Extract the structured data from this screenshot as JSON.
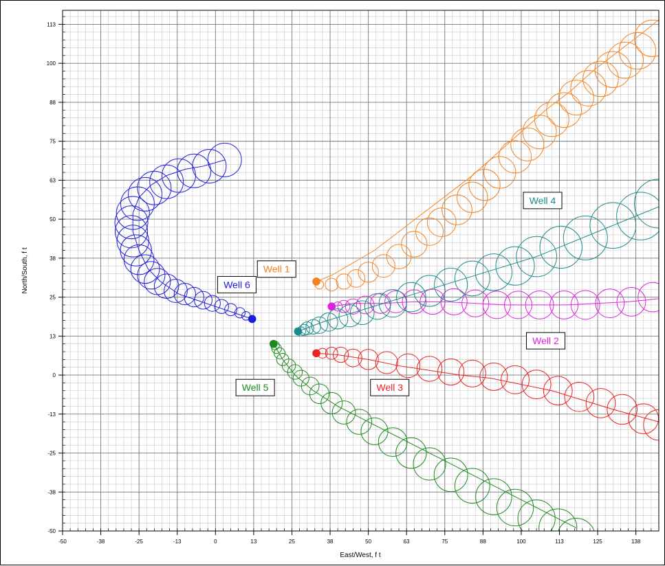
{
  "chart_data": {
    "type": "scatter",
    "title": "",
    "xlabel": "East/West, f t",
    "ylabel": "North/South, f t",
    "xlim": [
      -50,
      145
    ],
    "ylim": [
      -50,
      117
    ],
    "grid": true,
    "x_ticks": [
      "-50",
      "-38",
      "-25",
      "-13",
      "0",
      "13",
      "25",
      "38",
      "50",
      "63",
      "75",
      "88",
      "100",
      "113",
      "125",
      "138"
    ],
    "y_ticks": [
      "113",
      "100",
      "88",
      "75",
      "63",
      "50",
      "38",
      "25",
      "13",
      "0",
      "-13",
      "-25",
      "-38",
      "-50"
    ],
    "series": [
      {
        "name": "Well 1",
        "color": "#f58220",
        "label_pos": [
          20,
          34
        ],
        "start": [
          33,
          30
        ],
        "x": [
          33,
          38,
          45,
          52,
          60,
          68,
          76,
          84,
          92,
          100,
          108,
          116,
          124,
          132,
          140,
          145
        ],
        "y": [
          30,
          32,
          36,
          40,
          46,
          52,
          58,
          64,
          71,
          78,
          85,
          91,
          98,
          104,
          110,
          114
        ],
        "circle_x": [
          33,
          34,
          38,
          42,
          46,
          50,
          55,
          60,
          65,
          70,
          74,
          79,
          84,
          88,
          93,
          98,
          102,
          106,
          110,
          114,
          118,
          122,
          126,
          130,
          134,
          138,
          143
        ],
        "circle_y": [
          30,
          29,
          29,
          30,
          31,
          33,
          35,
          38,
          42,
          46,
          49,
          53,
          57,
          61,
          65,
          70,
          74,
          78,
          82,
          85,
          89,
          92,
          95,
          98,
          101,
          104,
          108
        ],
        "circle_r": [
          1.2,
          1.4,
          2.1,
          2.5,
          2.9,
          3.3,
          3.7,
          4.0,
          4.2,
          4.5,
          4.7,
          4.9,
          5.0,
          5.1,
          5.2,
          5.3,
          5.4,
          5.5,
          5.6,
          5.7,
          5.7,
          5.8,
          5.8,
          5.9,
          5.9,
          6.0,
          6.0
        ]
      },
      {
        "name": "Well 2",
        "color": "#e020e0",
        "label_pos": [
          108,
          11
        ],
        "start": [
          38,
          22
        ],
        "x": [
          38,
          45,
          55,
          65,
          75,
          85,
          95,
          105,
          115,
          125,
          135,
          145
        ],
        "y": [
          22,
          23,
          23,
          23.5,
          23.5,
          23,
          22.5,
          22.5,
          22.5,
          23,
          23.5,
          24.5
        ],
        "circle_x": [
          38,
          40,
          42,
          45,
          49,
          54,
          59,
          65,
          71,
          78,
          85,
          92,
          99,
          106,
          114,
          121,
          129,
          136,
          143
        ],
        "circle_y": [
          22,
          22,
          22,
          22,
          22.5,
          23,
          23.5,
          23.5,
          23.5,
          23.5,
          23,
          22.5,
          22.5,
          22.5,
          22.5,
          22.5,
          23,
          23.5,
          25
        ],
        "circle_r": [
          1.2,
          1.5,
          2.0,
          2.5,
          2.9,
          3.3,
          3.6,
          3.9,
          4.1,
          4.3,
          4.4,
          4.5,
          4.5,
          4.6,
          4.6,
          4.7,
          4.7,
          4.7,
          4.8
        ]
      },
      {
        "name": "Well 3",
        "color": "#ee2020",
        "label_pos": [
          57,
          -4
        ],
        "start": [
          33,
          7
        ],
        "x": [
          33,
          40,
          50,
          60,
          70,
          80,
          90,
          100,
          110,
          120,
          130,
          145
        ],
        "y": [
          7,
          6.5,
          5,
          3,
          1.5,
          0,
          -1,
          -3,
          -5,
          -8,
          -11,
          -15
        ],
        "circle_x": [
          33,
          35,
          38,
          41,
          45,
          50,
          56,
          63,
          70,
          77,
          84,
          91,
          98,
          105,
          112,
          119,
          126,
          133,
          140,
          145
        ],
        "circle_y": [
          7,
          7,
          7,
          6.5,
          5.5,
          5,
          4,
          3,
          2,
          1,
          0.5,
          -0.5,
          -1.5,
          -3,
          -5,
          -7,
          -9,
          -11,
          -14,
          -16
        ],
        "circle_r": [
          1.2,
          1.6,
          2.0,
          2.5,
          2.9,
          3.3,
          3.6,
          3.9,
          4.1,
          4.3,
          4.4,
          4.5,
          4.6,
          4.7,
          4.7,
          4.8,
          4.8,
          4.9,
          4.9,
          5.0
        ]
      },
      {
        "name": "Well 4",
        "color": "#1a8a8a",
        "label_pos": [
          107,
          56
        ],
        "start": [
          27,
          14
        ],
        "x": [
          27,
          35,
          45,
          55,
          65,
          75,
          85,
          95,
          105,
          115,
          125,
          135,
          145
        ],
        "y": [
          14,
          17,
          20,
          23,
          26,
          29,
          32,
          35,
          38,
          42,
          46,
          50,
          54
        ],
        "circle_x": [
          27,
          28,
          29,
          30,
          32,
          34,
          37,
          40,
          44,
          48,
          53,
          58,
          64,
          70,
          77,
          84,
          91,
          98,
          105,
          113,
          121,
          130,
          139,
          145
        ],
        "circle_y": [
          14,
          14,
          14.5,
          15,
          15.5,
          16,
          17,
          18,
          19,
          20,
          22,
          23,
          25,
          27,
          29,
          31,
          33,
          35,
          38,
          41,
          44,
          48,
          51,
          55
        ],
        "circle_r": [
          1.2,
          1.5,
          1.8,
          2.1,
          2.4,
          2.7,
          3.0,
          3.3,
          3.6,
          3.9,
          4.2,
          4.5,
          4.8,
          5.1,
          5.4,
          5.7,
          6.0,
          6.3,
          6.6,
          6.9,
          7.2,
          7.5,
          7.8,
          8.0
        ]
      },
      {
        "name": "Well 5",
        "color": "#1c8a1c",
        "label_pos": [
          13,
          -4
        ],
        "start": [
          19,
          10
        ],
        "x": [
          19,
          22,
          26,
          32,
          40,
          50,
          60,
          70,
          80,
          90,
          100,
          110,
          118
        ],
        "y": [
          10,
          5,
          0,
          -5,
          -10,
          -15,
          -20,
          -25,
          -30,
          -35,
          -40,
          -45,
          -49
        ],
        "circle_x": [
          19,
          19.5,
          20,
          21,
          22,
          24,
          26,
          28,
          31,
          34,
          38,
          42,
          47,
          52,
          58,
          64,
          70,
          77,
          84,
          91,
          98,
          105,
          112,
          118
        ],
        "circle_y": [
          10,
          9.5,
          8.5,
          7,
          5,
          3,
          1,
          -1,
          -3.5,
          -6,
          -9,
          -12,
          -15,
          -18,
          -21.5,
          -25,
          -28.5,
          -32,
          -35.5,
          -39,
          -42.5,
          -46,
          -49,
          -52
        ],
        "circle_r": [
          1.2,
          1.4,
          1.6,
          1.8,
          2.0,
          2.2,
          2.4,
          2.6,
          2.9,
          3.2,
          3.5,
          3.8,
          4.1,
          4.4,
          4.7,
          5.0,
          5.3,
          5.5,
          5.7,
          5.9,
          6.0,
          6.1,
          6.2,
          6.2
        ]
      },
      {
        "name": "Well 6",
        "color": "#1c1cdc",
        "label_pos": [
          7,
          29
        ],
        "start": [
          12,
          18
        ],
        "x": [
          12,
          6,
          0,
          -6,
          -12,
          -18,
          -22,
          -25,
          -27,
          -27,
          -25,
          -21,
          -16,
          -10,
          -4,
          3
        ],
        "y": [
          18,
          20,
          22,
          24,
          26,
          30,
          34,
          40,
          46,
          52,
          57,
          61,
          64,
          66,
          67,
          69
        ],
        "circle_x": [
          12,
          10,
          8,
          5,
          2,
          -1,
          -4,
          -7,
          -10,
          -13,
          -16,
          -19,
          -21,
          -23,
          -25,
          -26,
          -27,
          -27.5,
          -27.5,
          -27,
          -25.5,
          -23,
          -20,
          -16,
          -12,
          -7,
          -2,
          3
        ],
        "circle_y": [
          18,
          19,
          20,
          21,
          22,
          23,
          24,
          25,
          26,
          27,
          28.5,
          30,
          32,
          34,
          37,
          40,
          43,
          46,
          49,
          52,
          55,
          58,
          60,
          62,
          64,
          65.5,
          67,
          69
        ],
        "circle_r": [
          1.2,
          1.4,
          1.7,
          2.0,
          2.3,
          2.6,
          2.9,
          3.2,
          3.5,
          3.8,
          4.0,
          4.3,
          4.5,
          4.7,
          4.9,
          5.1,
          5.2,
          5.3,
          5.4,
          5.4,
          5.5,
          5.5,
          5.5,
          5.5,
          5.5,
          5.5,
          5.5,
          5.5
        ]
      }
    ]
  }
}
